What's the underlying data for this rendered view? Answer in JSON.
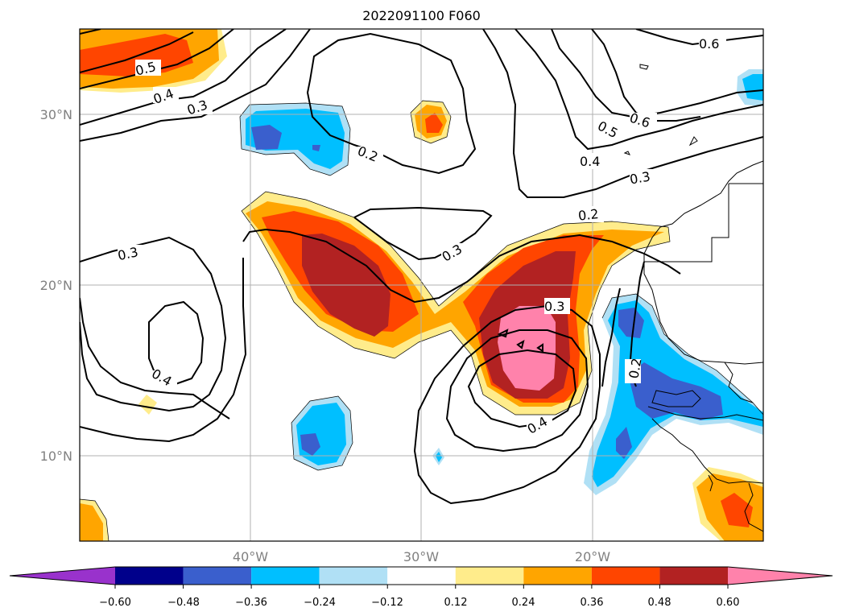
{
  "title": "2022091100 F060",
  "map": {
    "lat_ticks": [
      "30°N",
      "20°N",
      "10°N"
    ],
    "lon_ticks": [
      "40°W",
      "30°W",
      "20°W"
    ],
    "contour_labels": [
      "0.6",
      "0.5",
      "0.4",
      "0.3",
      "0.2",
      "0.6",
      "0.5",
      "0.4",
      "0.3",
      "0.2",
      "0.3",
      "0.3",
      "0.4",
      "0.3",
      "0.4",
      "0.2"
    ],
    "grid": true
  },
  "colorbar": {
    "levels": [
      "−0.60",
      "−0.48",
      "−0.36",
      "−0.24",
      "−0.12",
      "0.12",
      "0.24",
      "0.36",
      "0.48",
      "0.60"
    ],
    "colors": [
      "#9932cc",
      "#00008b",
      "#3a5fcd",
      "#00bfff",
      "#b0e0f5",
      "#ffffff",
      "#ffec8b",
      "#ffa500",
      "#ff4500",
      "#b22222",
      "#ff82ab"
    ]
  }
}
